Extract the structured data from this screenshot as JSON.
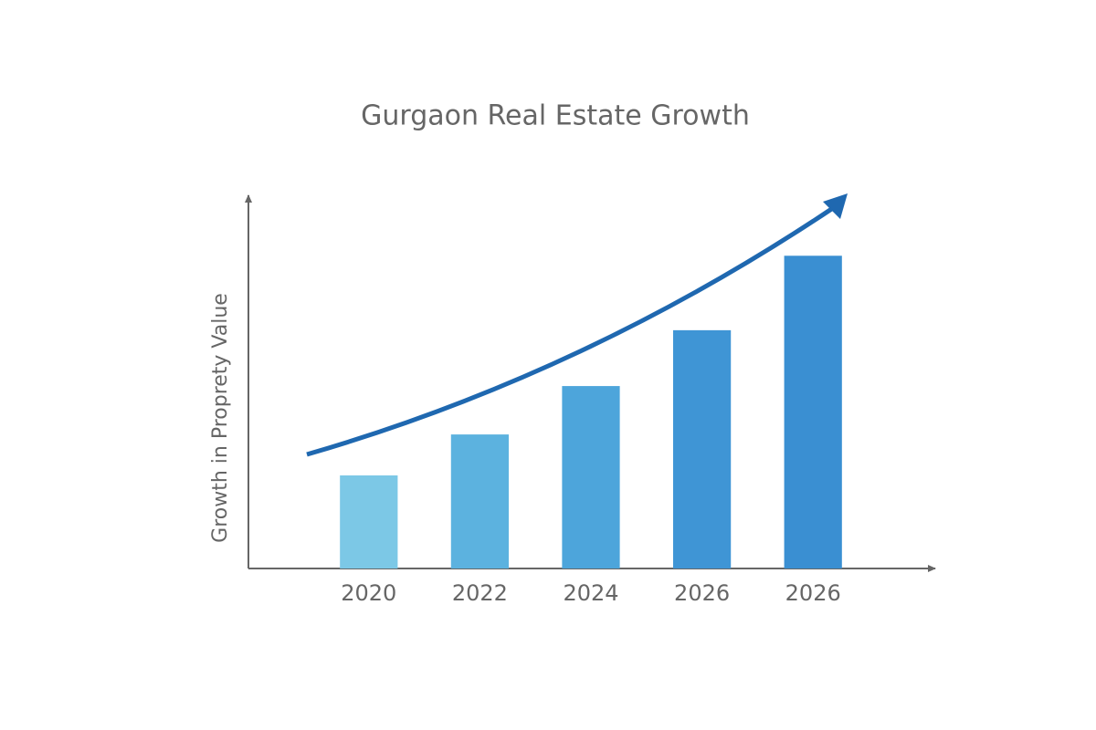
{
  "chart_data": {
    "type": "bar",
    "title": "Gurgaon Real Estate Growth",
    "y_label": "Growth in Proprety Value",
    "categories": [
      "2020",
      "2022",
      "2024",
      "2026",
      "2026"
    ],
    "values": [
      25,
      36,
      49,
      64,
      84
    ],
    "colors": [
      "#7cc8e6",
      "#5cb2df",
      "#4da5db",
      "#3f95d5",
      "#3a8fd2"
    ],
    "ylim": [
      0,
      100
    ]
  }
}
